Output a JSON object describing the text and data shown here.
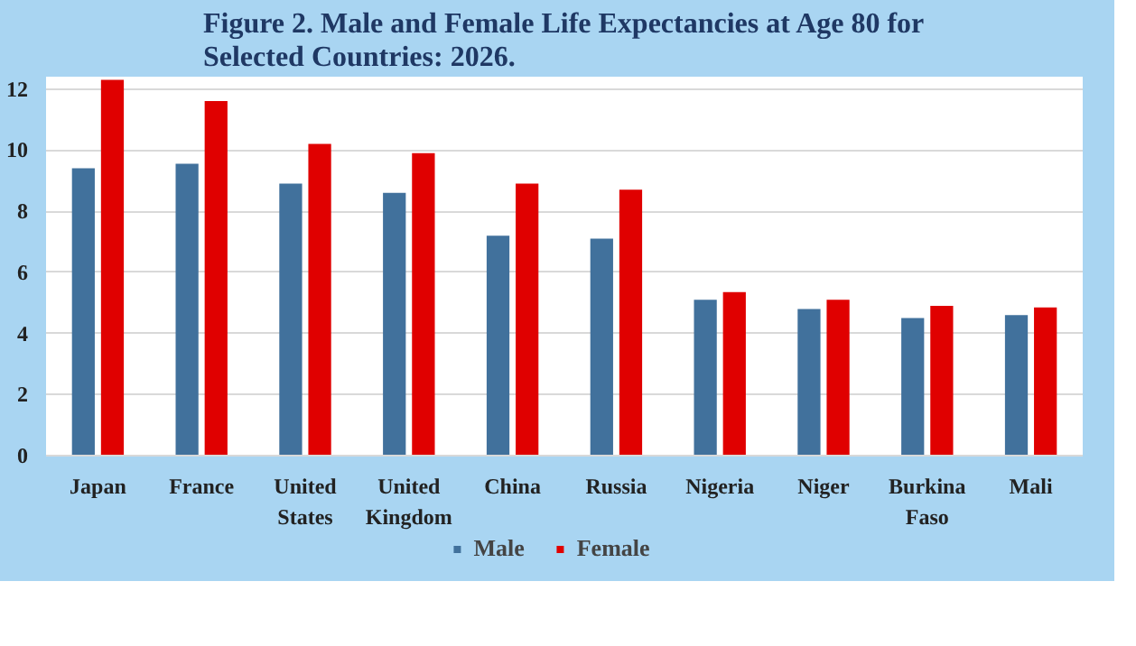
{
  "chart_data": {
    "type": "bar",
    "title": "Figure 2. Male and Female Life Expectancies at Age 80 for\nSelected Countries: 2026.",
    "categories": [
      "Japan",
      "France",
      "United\nStates",
      "United\nKingdom",
      "China",
      "Russia",
      "Nigeria",
      "Niger",
      "Burkina\nFaso",
      "Mali"
    ],
    "series": [
      {
        "name": "Male",
        "color": "#41719c",
        "values": [
          9.4,
          9.55,
          8.9,
          8.6,
          7.2,
          7.1,
          5.1,
          4.8,
          4.5,
          4.6
        ]
      },
      {
        "name": "Female",
        "color": "#e00000",
        "values": [
          12.3,
          11.6,
          10.2,
          9.9,
          8.9,
          8.7,
          5.35,
          5.1,
          4.9,
          4.85
        ]
      }
    ],
    "ylim": [
      0,
      12.4
    ],
    "yticks": [
      0,
      2,
      4,
      6,
      8,
      10,
      12
    ],
    "grid": "y",
    "legend": "bottom"
  }
}
